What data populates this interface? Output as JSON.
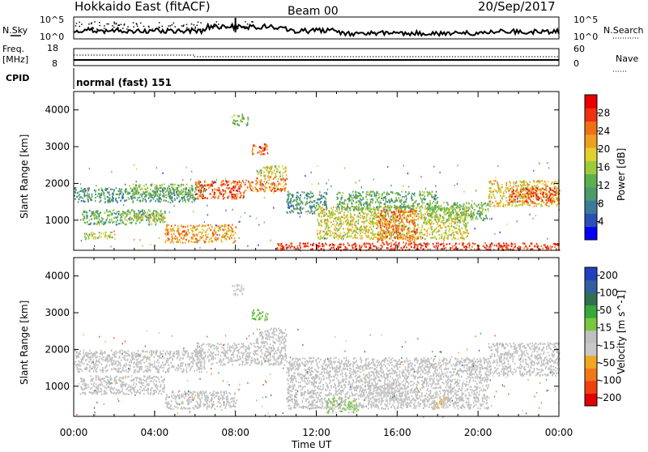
{
  "header": {
    "title": "Hokkaido East (fitACF)",
    "beam": "Beam 00",
    "date": "20/Sep/2017"
  },
  "nsky": {
    "left_label": "N.Sky",
    "right_label": "N.Search",
    "left_ticks": [
      "10^5",
      "10^0"
    ],
    "right_ticks": [
      "10^5",
      "10^0"
    ]
  },
  "freq": {
    "left_label_top": "Freq.",
    "left_label_unit": "[MHz]",
    "left_ticks": [
      "18",
      "8"
    ],
    "right_label": "Nave",
    "right_ticks": [
      "60",
      "0"
    ]
  },
  "cpid": {
    "label": "CPID",
    "value": "normal (fast) 151"
  },
  "x_axis": {
    "label": "Time UT",
    "ticks": [
      "00:00",
      "04:00",
      "08:00",
      "12:00",
      "16:00",
      "20:00",
      "00:00"
    ]
  },
  "colors": {
    "power_scale": [
      "#0000ff",
      "#2b4fb8",
      "#3d7a9a",
      "#4e9a6a",
      "#5cb04e",
      "#9ccc3a",
      "#e0d030",
      "#f0a020",
      "#f07018",
      "#f03010",
      "#e80000"
    ],
    "velocity_scale": [
      "#e00000",
      "#f04010",
      "#f07818",
      "#f0a820",
      "#c8c8c8",
      "#c0c0c0",
      "#78c840",
      "#38a838",
      "#307050",
      "#3060a0",
      "#2040c0"
    ]
  },
  "chart_data": [
    {
      "type": "heatmap",
      "title": "",
      "ylabel": "Slant Range [km]",
      "xlabel": "",
      "ylim": [
        180,
        4500
      ],
      "yticks": [
        1000,
        2000,
        3000,
        4000
      ],
      "colorbar": {
        "label": "Power [dB]",
        "ticks": [
          "4",
          "8",
          "12",
          "16",
          "20",
          "24",
          "28"
        ],
        "range": [
          0,
          32
        ]
      },
      "regions": [
        {
          "t0": 0.0,
          "t1": 6.0,
          "r0": 1500,
          "r1": 1900,
          "value": 10
        },
        {
          "t0": 2.5,
          "t1": 6.5,
          "r0": 1700,
          "r1": 2000,
          "value": 14
        },
        {
          "t0": 6.0,
          "t1": 8.5,
          "r0": 1600,
          "r1": 2100,
          "value": 26
        },
        {
          "t0": 8.5,
          "t1": 10.5,
          "r0": 1800,
          "r1": 2200,
          "value": 24
        },
        {
          "t0": 9.0,
          "t1": 10.5,
          "r0": 2200,
          "r1": 2500,
          "value": 18
        },
        {
          "t0": 8.8,
          "t1": 9.6,
          "r0": 2800,
          "r1": 3100,
          "value": 26
        },
        {
          "t0": 0.3,
          "t1": 4.5,
          "r0": 900,
          "r1": 1300,
          "value": 12
        },
        {
          "t0": 2.5,
          "t1": 4.5,
          "r0": 1000,
          "r1": 1200,
          "value": 18
        },
        {
          "t0": 0.5,
          "t1": 2.0,
          "r0": 500,
          "r1": 700,
          "value": 16
        },
        {
          "t0": 4.5,
          "t1": 8.0,
          "r0": 400,
          "r1": 900,
          "value": 22
        },
        {
          "t0": 10.5,
          "t1": 12.5,
          "r0": 1200,
          "r1": 1800,
          "value": 10
        },
        {
          "t0": 12.0,
          "t1": 19.5,
          "r0": 500,
          "r1": 1400,
          "value": 18
        },
        {
          "t0": 15.0,
          "t1": 17.0,
          "r0": 400,
          "r1": 1300,
          "value": 24
        },
        {
          "t0": 13.0,
          "t1": 18.0,
          "r0": 1300,
          "r1": 1800,
          "value": 12
        },
        {
          "t0": 17.5,
          "t1": 20.5,
          "r0": 1000,
          "r1": 1500,
          "value": 14
        },
        {
          "t0": 20.5,
          "t1": 24.0,
          "r0": 1400,
          "r1": 2100,
          "value": 20
        },
        {
          "t0": 21.5,
          "t1": 24.0,
          "r0": 1500,
          "r1": 1900,
          "value": 26
        },
        {
          "t0": 10.0,
          "t1": 24.0,
          "r0": 200,
          "r1": 400,
          "value": 28
        },
        {
          "t0": 7.8,
          "t1": 8.6,
          "r0": 3600,
          "r1": 3900,
          "value": 14
        }
      ]
    },
    {
      "type": "heatmap",
      "title": "",
      "ylabel": "Slant Range [km]",
      "xlabel": "Time UT",
      "ylim": [
        180,
        4500
      ],
      "yticks": [
        1000,
        2000,
        3000,
        4000
      ],
      "colorbar": {
        "label": "Velocity [m s^-1]",
        "ticks": [
          "200",
          "100",
          "50",
          "15",
          "-15",
          "-50",
          "-100",
          "-200"
        ],
        "range": [
          -250,
          250
        ]
      },
      "regions": [
        {
          "t0": 0.0,
          "t1": 6.5,
          "r0": 1400,
          "r1": 2000,
          "value": 0
        },
        {
          "t0": 6.0,
          "t1": 10.5,
          "r0": 1600,
          "r1": 2200,
          "value": 0
        },
        {
          "t0": 0.3,
          "t1": 4.5,
          "r0": 800,
          "r1": 1300,
          "value": 0
        },
        {
          "t0": 4.5,
          "t1": 8.0,
          "r0": 400,
          "r1": 900,
          "value": 0
        },
        {
          "t0": 8.8,
          "t1": 9.6,
          "r0": 2800,
          "r1": 3100,
          "value": 60
        },
        {
          "t0": 9.0,
          "t1": 10.5,
          "r0": 2200,
          "r1": 2600,
          "value": 0
        },
        {
          "t0": 10.5,
          "t1": 20.5,
          "r0": 400,
          "r1": 1800,
          "value": 0
        },
        {
          "t0": 14.5,
          "t1": 16.5,
          "r0": 500,
          "r1": 1100,
          "value": -40
        },
        {
          "t0": 17.5,
          "t1": 18.5,
          "r0": 400,
          "r1": 800,
          "value": -60
        },
        {
          "t0": 12.5,
          "t1": 14.0,
          "r0": 300,
          "r1": 700,
          "value": 30
        },
        {
          "t0": 20.5,
          "t1": 24.0,
          "r0": 1300,
          "r1": 2200,
          "value": 0
        },
        {
          "t0": 7.8,
          "t1": 8.4,
          "r0": 3500,
          "r1": 3800,
          "value": -40
        }
      ]
    }
  ]
}
